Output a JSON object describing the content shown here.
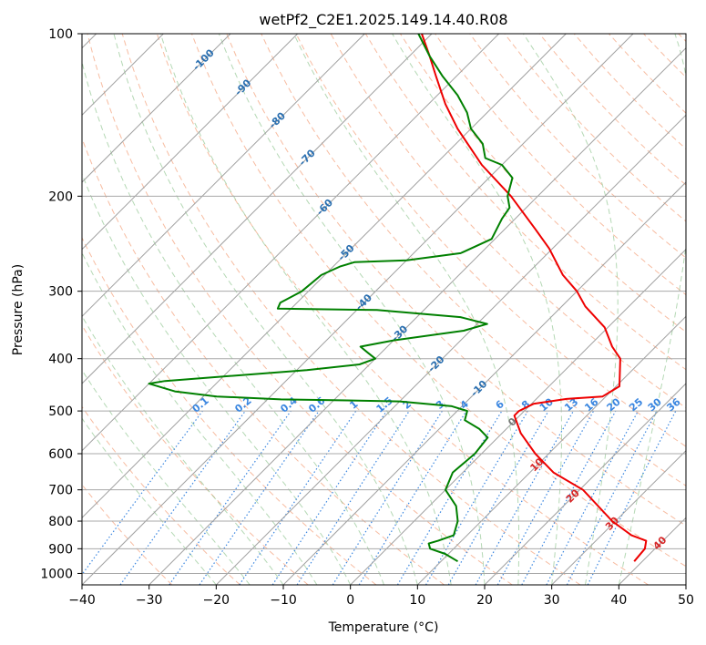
{
  "chart_data": {
    "type": "line",
    "subtype": "skew-t log-p diagram",
    "title": "wetPf2_C2E1.2025.149.14.40.R08",
    "xlabel": "Temperature (°C)",
    "ylabel": "Pressure (hPa)",
    "xlim": [
      -40,
      50
    ],
    "ylim": [
      1050,
      100
    ],
    "y_scale": "log (inverted)",
    "x_ticks": [
      -40,
      -30,
      -20,
      -10,
      0,
      10,
      20,
      30,
      40,
      50
    ],
    "x_tick_labels": [
      "−40",
      "−30",
      "−20",
      "−10",
      "0",
      "10",
      "20",
      "30",
      "40",
      "50"
    ],
    "y_ticks": [
      100,
      200,
      300,
      400,
      500,
      600,
      700,
      800,
      900,
      1000
    ],
    "y_tick_labels": [
      "100",
      "200",
      "300",
      "400",
      "500",
      "600",
      "700",
      "800",
      "900",
      "1000"
    ],
    "grid": true,
    "series": [
      {
        "role": "temperature",
        "color": "#ee0000",
        "points": [
          [
            950,
            38.8
          ],
          [
            900,
            38.5
          ],
          [
            870,
            37.5
          ],
          [
            850,
            34.5
          ],
          [
            800,
            29.5
          ],
          [
            700,
            20.5
          ],
          [
            650,
            13.5
          ],
          [
            600,
            8.0
          ],
          [
            550,
            2.8
          ],
          [
            510,
            -0.8
          ],
          [
            500,
            -0.8
          ],
          [
            485,
            0.3
          ],
          [
            475,
            4.5
          ],
          [
            470,
            9.5
          ],
          [
            460,
            10.0
          ],
          [
            450,
            10.5
          ],
          [
            400,
            6.5
          ],
          [
            380,
            3.5
          ],
          [
            350,
            -0.5
          ],
          [
            320,
            -6.5
          ],
          [
            300,
            -10.0
          ],
          [
            280,
            -14.5
          ],
          [
            250,
            -20.5
          ],
          [
            230,
            -25.5
          ],
          [
            200,
            -34.0
          ],
          [
            175,
            -43.0
          ],
          [
            150,
            -52.0
          ],
          [
            135,
            -57.5
          ],
          [
            120,
            -63.0
          ],
          [
            110,
            -67.0
          ],
          [
            100,
            -71.5
          ]
        ]
      },
      {
        "role": "dewpoint",
        "color": "#008000",
        "points": [
          [
            950,
            12.5
          ],
          [
            920,
            9.5
          ],
          [
            900,
            6.5
          ],
          [
            880,
            5.5
          ],
          [
            870,
            6.5
          ],
          [
            850,
            8.0
          ],
          [
            800,
            6.5
          ],
          [
            750,
            4.0
          ],
          [
            700,
            0.0
          ],
          [
            650,
            -1.5
          ],
          [
            600,
            -1.0
          ],
          [
            560,
            -1.5
          ],
          [
            540,
            -4.0
          ],
          [
            520,
            -7.5
          ],
          [
            500,
            -8.5
          ],
          [
            490,
            -11.5
          ],
          [
            480,
            -20.0
          ],
          [
            478,
            -28.0
          ],
          [
            476,
            -38.0
          ],
          [
            470,
            -48.0
          ],
          [
            460,
            -55.0
          ],
          [
            445,
            -60.0
          ],
          [
            440,
            -58.0
          ],
          [
            420,
            -38.5
          ],
          [
            410,
            -31.5
          ],
          [
            400,
            -30.0
          ],
          [
            390,
            -32.0
          ],
          [
            380,
            -34.0
          ],
          [
            370,
            -30.0
          ],
          [
            355,
            -21.0
          ],
          [
            345,
            -18.5
          ],
          [
            335,
            -23.5
          ],
          [
            325,
            -37.0
          ],
          [
            323,
            -52.0
          ],
          [
            315,
            -52.5
          ],
          [
            300,
            -51.0
          ],
          [
            280,
            -50.5
          ],
          [
            270,
            -49.0
          ],
          [
            265,
            -47.5
          ],
          [
            263,
            -40.0
          ],
          [
            255,
            -33.0
          ],
          [
            240,
            -30.5
          ],
          [
            220,
            -32.0
          ],
          [
            210,
            -32.5
          ],
          [
            200,
            -34.5
          ],
          [
            185,
            -36.5
          ],
          [
            175,
            -40.0
          ],
          [
            170,
            -43.5
          ],
          [
            160,
            -46.0
          ],
          [
            150,
            -50.0
          ],
          [
            140,
            -53.0
          ],
          [
            130,
            -57.0
          ],
          [
            120,
            -62.0
          ],
          [
            110,
            -67.0
          ],
          [
            100,
            -72.0
          ]
        ]
      }
    ],
    "background_lines": {
      "isotherm_interval": 10,
      "dry_adiabats_c": [
        -30,
        -20,
        -10,
        0,
        10,
        20,
        30,
        40,
        50,
        60,
        70,
        80,
        90,
        100,
        110,
        120,
        130,
        140,
        150,
        160,
        170,
        180,
        190,
        200
      ],
      "moist_adiabats_c": [
        -20,
        -15,
        -10,
        -5,
        0,
        5,
        10,
        15,
        20,
        25,
        30,
        35,
        40
      ],
      "mixing_ratio_gkg": [
        0.1,
        0.2,
        0.4,
        0.6,
        1,
        1.5,
        2,
        3,
        4,
        6,
        8,
        10,
        13,
        16,
        20,
        25,
        30,
        36
      ]
    },
    "annotations": {
      "mixing_ratio_labels": [
        "0.1",
        "0.2",
        "0.4",
        "0.6",
        "1",
        "1.5",
        "2",
        "3",
        "4",
        "6",
        "8",
        "10",
        "13",
        "16",
        "20",
        "25",
        "30",
        "36"
      ],
      "dry_adiabat_labels": [
        {
          "text": "-100",
          "p": 112
        },
        {
          "text": "-90",
          "p": 126
        },
        {
          "text": "-80",
          "p": 145
        },
        {
          "text": "-70",
          "p": 170
        },
        {
          "text": "-60",
          "p": 210
        },
        {
          "text": "-50",
          "p": 255
        },
        {
          "text": "-40",
          "p": 315
        },
        {
          "text": "-30",
          "p": 360
        },
        {
          "text": "-20",
          "p": 410
        },
        {
          "text": "-10",
          "p": 455
        }
      ],
      "zero_label": {
        "text": "0",
        "p": 525
      },
      "moist_adiabat_labels": [
        {
          "text": "10",
          "p": 630
        },
        {
          "text": "20",
          "p": 720
        },
        {
          "text": "30",
          "p": 810
        },
        {
          "text": "40",
          "p": 880
        }
      ]
    }
  }
}
